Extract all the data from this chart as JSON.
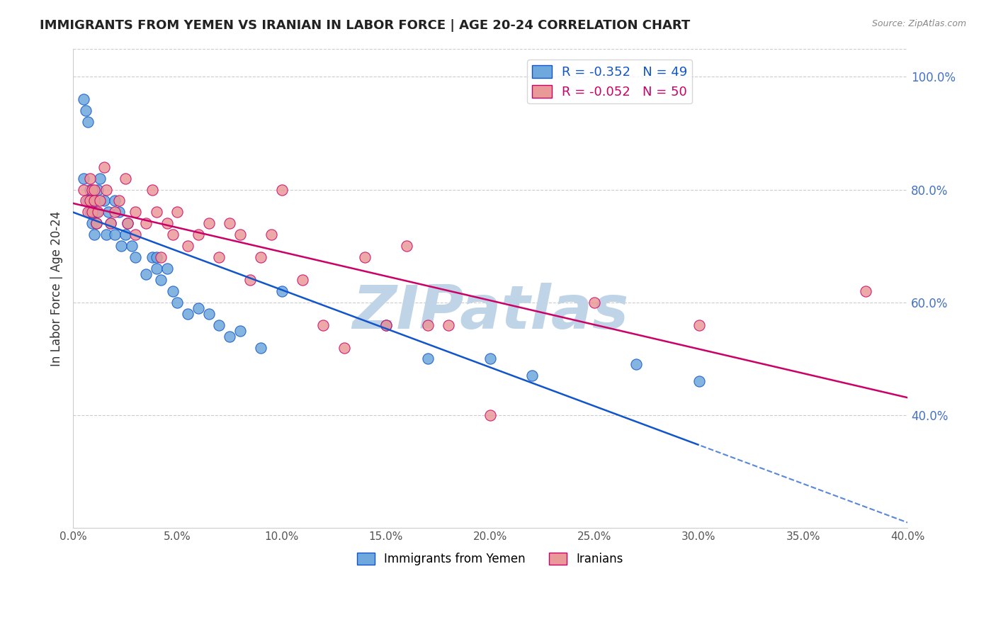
{
  "title": "IMMIGRANTS FROM YEMEN VS IRANIAN IN LABOR FORCE | AGE 20-24 CORRELATION CHART",
  "source": "Source: ZipAtlas.com",
  "ylabel_left": "In Labor Force | Age 20-24",
  "xmin": 0.0,
  "xmax": 0.4,
  "ymin": 0.2,
  "ymax": 1.05,
  "right_yticks": [
    1.0,
    0.8,
    0.6,
    0.4
  ],
  "bottom_xticks": [
    0.0,
    0.05,
    0.1,
    0.15,
    0.2,
    0.25,
    0.3,
    0.35,
    0.4
  ],
  "yemen_R": -0.352,
  "yemen_N": 49,
  "iran_R": -0.052,
  "iran_N": 50,
  "yemen_color": "#6fa8dc",
  "iran_color": "#ea9999",
  "trend_yemen_color": "#1155cc",
  "trend_iran_color": "#cc0066",
  "watermark_text": "ZIPatlas",
  "watermark_color": "#c0d4e8",
  "legend_yemen_label": "Immigrants from Yemen",
  "legend_iran_label": "Iranians",
  "yemen_x": [
    0.005,
    0.005,
    0.006,
    0.007,
    0.007,
    0.008,
    0.008,
    0.009,
    0.009,
    0.01,
    0.01,
    0.011,
    0.011,
    0.012,
    0.013,
    0.015,
    0.016,
    0.017,
    0.018,
    0.02,
    0.02,
    0.022,
    0.023,
    0.025,
    0.026,
    0.028,
    0.03,
    0.035,
    0.038,
    0.04,
    0.04,
    0.042,
    0.045,
    0.048,
    0.05,
    0.055,
    0.06,
    0.065,
    0.07,
    0.075,
    0.08,
    0.09,
    0.1,
    0.15,
    0.17,
    0.2,
    0.22,
    0.27,
    0.3
  ],
  "yemen_y": [
    0.96,
    0.82,
    0.94,
    0.92,
    0.78,
    0.8,
    0.76,
    0.78,
    0.74,
    0.76,
    0.72,
    0.74,
    0.76,
    0.8,
    0.82,
    0.78,
    0.72,
    0.76,
    0.74,
    0.72,
    0.78,
    0.76,
    0.7,
    0.72,
    0.74,
    0.7,
    0.68,
    0.65,
    0.68,
    0.66,
    0.68,
    0.64,
    0.66,
    0.62,
    0.6,
    0.58,
    0.59,
    0.58,
    0.56,
    0.54,
    0.55,
    0.52,
    0.62,
    0.56,
    0.5,
    0.5,
    0.47,
    0.49,
    0.46
  ],
  "iran_x": [
    0.005,
    0.006,
    0.007,
    0.008,
    0.008,
    0.009,
    0.009,
    0.01,
    0.01,
    0.011,
    0.012,
    0.013,
    0.015,
    0.016,
    0.018,
    0.02,
    0.022,
    0.025,
    0.026,
    0.03,
    0.03,
    0.035,
    0.038,
    0.04,
    0.042,
    0.045,
    0.048,
    0.05,
    0.055,
    0.06,
    0.065,
    0.07,
    0.075,
    0.08,
    0.085,
    0.09,
    0.095,
    0.1,
    0.11,
    0.12,
    0.13,
    0.14,
    0.15,
    0.16,
    0.17,
    0.18,
    0.2,
    0.25,
    0.3,
    0.38
  ],
  "iran_y": [
    0.8,
    0.78,
    0.76,
    0.82,
    0.78,
    0.8,
    0.76,
    0.8,
    0.78,
    0.74,
    0.76,
    0.78,
    0.84,
    0.8,
    0.74,
    0.76,
    0.78,
    0.82,
    0.74,
    0.76,
    0.72,
    0.74,
    0.8,
    0.76,
    0.68,
    0.74,
    0.72,
    0.76,
    0.7,
    0.72,
    0.74,
    0.68,
    0.74,
    0.72,
    0.64,
    0.68,
    0.72,
    0.8,
    0.64,
    0.56,
    0.52,
    0.68,
    0.56,
    0.7,
    0.56,
    0.56,
    0.4,
    0.6,
    0.56,
    0.62
  ]
}
